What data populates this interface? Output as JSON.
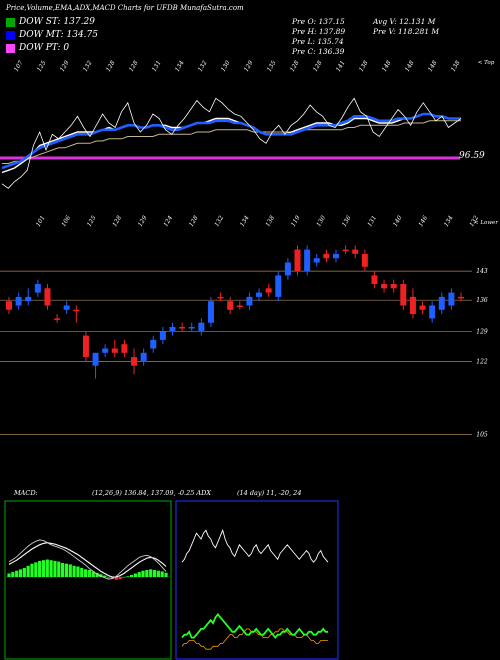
{
  "header": {
    "title": "Price,Volume,EMA,ADX,MACD Charts for UFDB MunafaSutra.com"
  },
  "dow_legend": [
    {
      "label": "DOW ST: 137.29",
      "color": "#00aa00"
    },
    {
      "label": "DOW MT: 134.75",
      "color": "#0000ff"
    },
    {
      "label": "DOW PT: 0",
      "color": "#ff44ff"
    }
  ],
  "price_info": {
    "open": "Pre   O: 137.15",
    "high": "Pre   H: 137.89",
    "low": "Pre   L: 135.74",
    "close": "Pre   C: 136.39",
    "avg_volume": "Avg V: 12.131 M",
    "volume": "Pre   V: 118.281 M"
  },
  "chart_data": [
    {
      "type": "line",
      "name": "volume-ema",
      "top_labels": [
        "107",
        "125",
        "129",
        "132",
        "128",
        "128",
        "131",
        "134",
        "132",
        "130",
        "129",
        "135",
        "128",
        "128",
        "141",
        "138",
        "148",
        "148",
        "148",
        "138"
      ],
      "upper_label": "< Top",
      "value_label": "96.59",
      "price": [
        95,
        93,
        96,
        98,
        101,
        112,
        118,
        110,
        117,
        115,
        118,
        121,
        125,
        120,
        116,
        121,
        126,
        122,
        120,
        127,
        131,
        122,
        118,
        121,
        126,
        124,
        119,
        117,
        121,
        124,
        128,
        132,
        129,
        127,
        133,
        131,
        128,
        126,
        125,
        122,
        119,
        115,
        113,
        118,
        121,
        117,
        121,
        123,
        126,
        130,
        127,
        125,
        121,
        120,
        124,
        129,
        133,
        127,
        125,
        118,
        116,
        120,
        124,
        128,
        125,
        121,
        127,
        131,
        127,
        123,
        125,
        120,
        122,
        124
      ],
      "ema_blue": [
        102,
        103,
        104,
        105,
        107,
        109,
        111,
        112,
        113,
        114,
        115,
        116,
        117,
        117,
        117,
        118,
        119,
        119,
        119,
        120,
        121,
        121,
        120,
        120,
        121,
        121,
        120,
        119,
        119,
        120,
        121,
        122,
        122,
        122,
        123,
        123,
        123,
        122,
        122,
        121,
        120,
        118,
        117,
        117,
        117,
        117,
        117,
        118,
        119,
        120,
        121,
        121,
        121,
        121,
        122,
        123,
        125,
        125,
        125,
        124,
        123,
        123,
        123,
        124,
        124,
        124,
        125,
        126,
        126,
        125,
        125,
        124,
        124,
        124
      ],
      "ema_white": [
        100,
        101,
        102,
        104,
        106,
        109,
        112,
        113,
        114,
        115,
        116,
        117,
        118,
        118,
        118,
        118,
        119,
        120,
        119,
        120,
        121,
        121,
        120,
        120,
        121,
        121,
        121,
        120,
        120,
        120,
        121,
        122,
        122,
        123,
        124,
        124,
        124,
        123,
        122,
        121,
        120,
        118,
        117,
        117,
        117,
        117,
        118,
        119,
        120,
        121,
        122,
        122,
        122,
        121,
        121,
        122,
        124,
        124,
        124,
        123,
        122,
        122,
        122,
        123,
        124,
        124,
        125,
        126,
        126,
        125,
        125,
        124,
        124,
        124
      ],
      "ema_slow": [
        104,
        104,
        105,
        105,
        106,
        107,
        108,
        109,
        110,
        111,
        111,
        112,
        113,
        113,
        113,
        114,
        114,
        115,
        115,
        115,
        116,
        116,
        116,
        116,
        116,
        117,
        117,
        117,
        117,
        117,
        117,
        118,
        118,
        118,
        119,
        119,
        119,
        119,
        119,
        119,
        118,
        118,
        118,
        118,
        118,
        118,
        118,
        118,
        119,
        119,
        119,
        119,
        119,
        119,
        119,
        120,
        120,
        121,
        121,
        121,
        121,
        121,
        121,
        121,
        122,
        122,
        122,
        122,
        123,
        123,
        123,
        123,
        123,
        123
      ]
    },
    {
      "type": "candlestick",
      "name": "price",
      "top_labels": [
        "101",
        "106",
        "125",
        "128",
        "129",
        "124",
        "128",
        "132",
        "134",
        "138",
        "119",
        "130",
        "136",
        "131",
        "140",
        "146",
        "134",
        "132"
      ],
      "lower_label": "< Lower",
      "ylim": [
        100,
        152
      ],
      "y_ticks": [
        143,
        136,
        129,
        122,
        105
      ],
      "candles": [
        {
          "o": 136,
          "h": 137,
          "l": 133,
          "c": 134,
          "up": false
        },
        {
          "o": 135,
          "h": 138,
          "l": 134,
          "c": 137,
          "up": true
        },
        {
          "o": 136,
          "h": 139,
          "l": 135,
          "c": 137,
          "up": true
        },
        {
          "o": 138,
          "h": 141,
          "l": 137,
          "c": 140,
          "up": true
        },
        {
          "o": 139,
          "h": 140,
          "l": 134,
          "c": 135,
          "up": false
        },
        {
          "o": 132,
          "h": 133,
          "l": 131,
          "c": 132,
          "up": false
        },
        {
          "o": 134,
          "h": 136,
          "l": 133,
          "c": 135,
          "up": true
        },
        {
          "o": 134,
          "h": 135,
          "l": 131,
          "c": 134,
          "up": false
        },
        {
          "o": 128,
          "h": 129,
          "l": 122,
          "c": 123,
          "up": false
        },
        {
          "o": 121,
          "h": 124,
          "l": 118,
          "c": 124,
          "up": true
        },
        {
          "o": 124,
          "h": 126,
          "l": 123,
          "c": 125,
          "up": true
        },
        {
          "o": 125,
          "h": 127,
          "l": 123,
          "c": 124,
          "up": false
        },
        {
          "o": 126,
          "h": 127,
          "l": 123,
          "c": 124,
          "up": false
        },
        {
          "o": 123,
          "h": 125,
          "l": 119,
          "c": 121,
          "up": false
        },
        {
          "o": 122,
          "h": 125,
          "l": 121,
          "c": 124,
          "up": true
        },
        {
          "o": 125,
          "h": 128,
          "l": 124,
          "c": 127,
          "up": true
        },
        {
          "o": 127,
          "h": 130,
          "l": 126,
          "c": 129,
          "up": true
        },
        {
          "o": 129,
          "h": 131,
          "l": 128,
          "c": 130,
          "up": true
        },
        {
          "o": 130,
          "h": 131,
          "l": 129,
          "c": 130,
          "up": false
        },
        {
          "o": 130,
          "h": 131,
          "l": 129,
          "c": 130,
          "up": true
        },
        {
          "o": 129,
          "h": 132,
          "l": 128,
          "c": 131,
          "up": true
        },
        {
          "o": 131,
          "h": 137,
          "l": 130,
          "c": 136,
          "up": true
        },
        {
          "o": 137,
          "h": 138,
          "l": 136,
          "c": 137,
          "up": false
        },
        {
          "o": 136,
          "h": 137,
          "l": 133,
          "c": 134,
          "up": false
        },
        {
          "o": 135,
          "h": 136,
          "l": 134,
          "c": 135,
          "up": false
        },
        {
          "o": 135,
          "h": 138,
          "l": 134,
          "c": 137,
          "up": true
        },
        {
          "o": 137,
          "h": 139,
          "l": 136,
          "c": 138,
          "up": true
        },
        {
          "o": 139,
          "h": 140,
          "l": 137,
          "c": 138,
          "up": false
        },
        {
          "o": 137,
          "h": 143,
          "l": 136,
          "c": 142,
          "up": true
        },
        {
          "o": 142,
          "h": 146,
          "l": 141,
          "c": 145,
          "up": true
        },
        {
          "o": 148,
          "h": 149,
          "l": 142,
          "c": 143,
          "up": false
        },
        {
          "o": 143,
          "h": 149,
          "l": 142,
          "c": 148,
          "up": true
        },
        {
          "o": 145,
          "h": 147,
          "l": 144,
          "c": 146,
          "up": true
        },
        {
          "o": 147,
          "h": 148,
          "l": 145,
          "c": 146,
          "up": false
        },
        {
          "o": 146,
          "h": 148,
          "l": 145,
          "c": 147,
          "up": true
        },
        {
          "o": 148,
          "h": 149,
          "l": 147,
          "c": 148,
          "up": false
        },
        {
          "o": 148,
          "h": 149,
          "l": 146,
          "c": 147,
          "up": false
        },
        {
          "o": 147,
          "h": 148,
          "l": 143,
          "c": 144,
          "up": false
        },
        {
          "o": 142,
          "h": 143,
          "l": 139,
          "c": 140,
          "up": false
        },
        {
          "o": 140,
          "h": 141,
          "l": 138,
          "c": 139,
          "up": false
        },
        {
          "o": 139,
          "h": 141,
          "l": 138,
          "c": 140,
          "up": false
        },
        {
          "o": 140,
          "h": 141,
          "l": 134,
          "c": 135,
          "up": false
        },
        {
          "o": 137,
          "h": 139,
          "l": 132,
          "c": 133,
          "up": false
        },
        {
          "o": 135,
          "h": 136,
          "l": 133,
          "c": 134,
          "up": false
        },
        {
          "o": 132,
          "h": 136,
          "l": 131,
          "c": 135,
          "up": true
        },
        {
          "o": 134,
          "h": 138,
          "l": 133,
          "c": 137,
          "up": true
        },
        {
          "o": 135,
          "h": 139,
          "l": 134,
          "c": 138,
          "up": true
        },
        {
          "o": 137,
          "h": 138,
          "l": 136,
          "c": 137,
          "up": false
        }
      ]
    },
    {
      "type": "bar",
      "name": "macd",
      "label": "MACD:",
      "values_text": "(12,26,9) 136.84, 137.09, -0.25 ADX",
      "histogram": [
        0.5,
        0.7,
        0.9,
        1.1,
        1.3,
        1.6,
        1.9,
        2.1,
        2.3,
        2.4,
        2.5,
        2.4,
        2.3,
        2.2,
        2.0,
        1.9,
        1.8,
        1.6,
        1.5,
        1.3,
        1.1,
        1.0,
        0.8,
        0.6,
        0.4,
        0.2,
        -0.1,
        -0.3,
        -0.4,
        -0.3,
        -0.1,
        0.1,
        0.3,
        0.5,
        0.7,
        0.9,
        1.0,
        1.1,
        1.0,
        0.9,
        0.8,
        0.6
      ],
      "macd_line": [
        2.2,
        2.5,
        2.9,
        3.4,
        3.9,
        4.4,
        4.8,
        5.1,
        5.3,
        5.2,
        4.9,
        4.6,
        4.4,
        4.2,
        4.0,
        3.7,
        3.3,
        2.9,
        2.5,
        2.1,
        1.7,
        1.2,
        0.8,
        0.4,
        0.1,
        -0.1,
        -0.3,
        -0.2,
        0.1,
        0.6,
        1.1,
        1.6,
        2.0,
        2.4,
        2.8,
        3.0,
        3.1,
        2.9,
        2.5,
        2.0,
        1.4,
        0.8
      ],
      "signal_line": [
        1.8,
        2.1,
        2.4,
        2.8,
        3.2,
        3.6,
        4.0,
        4.3,
        4.6,
        4.8,
        4.9,
        4.8,
        4.7,
        4.5,
        4.3,
        4.1,
        3.8,
        3.5,
        3.2,
        2.8,
        2.4,
        2.0,
        1.6,
        1.2,
        0.8,
        0.5,
        0.2,
        0.0,
        0.0,
        0.2,
        0.5,
        0.9,
        1.3,
        1.7,
        2.1,
        2.4,
        2.7,
        2.8,
        2.7,
        2.4,
        2.0,
        1.5
      ]
    },
    {
      "type": "line",
      "name": "adx",
      "values_text": "(14 day) 11, -20, 24",
      "ylim": [
        0,
        50
      ],
      "adx": [
        32,
        33,
        35,
        36,
        38,
        40,
        42,
        41,
        40,
        42,
        43,
        41,
        40,
        38,
        37,
        39,
        41,
        43,
        40,
        38,
        37,
        35,
        34,
        36,
        38,
        37,
        36,
        35,
        34,
        35,
        37,
        38,
        36,
        35,
        36,
        37,
        38,
        36,
        35,
        34,
        33,
        35,
        36,
        37,
        38,
        37,
        36,
        35,
        34,
        33,
        34,
        35,
        36,
        35,
        33,
        32,
        33,
        35,
        36,
        34,
        33,
        32
      ],
      "plus_di": [
        6,
        7,
        7,
        8,
        6,
        6,
        7,
        8,
        9,
        9,
        10,
        11,
        12,
        11,
        13,
        14,
        13,
        12,
        11,
        10,
        9,
        8,
        8,
        9,
        10,
        9,
        8,
        7,
        7,
        8,
        8,
        9,
        8,
        7,
        7,
        8,
        9,
        8,
        7,
        6,
        7,
        7,
        8,
        8,
        9,
        8,
        7,
        7,
        8,
        9,
        8,
        7,
        7,
        8,
        8,
        7,
        7,
        8,
        8,
        9,
        8,
        8
      ],
      "minus_di": [
        3,
        4,
        4,
        5,
        5,
        5,
        4,
        4,
        3,
        3,
        2,
        2,
        2,
        3,
        3,
        3,
        4,
        4,
        5,
        6,
        7,
        7,
        6,
        6,
        7,
        7,
        8,
        9,
        9,
        8,
        8,
        8,
        7,
        7,
        6,
        6,
        6,
        7,
        7,
        8,
        8,
        9,
        9,
        8,
        8,
        7,
        7,
        7,
        6,
        6,
        6,
        7,
        7,
        6,
        5,
        5,
        4,
        4,
        5,
        5,
        5,
        5
      ]
    }
  ]
}
